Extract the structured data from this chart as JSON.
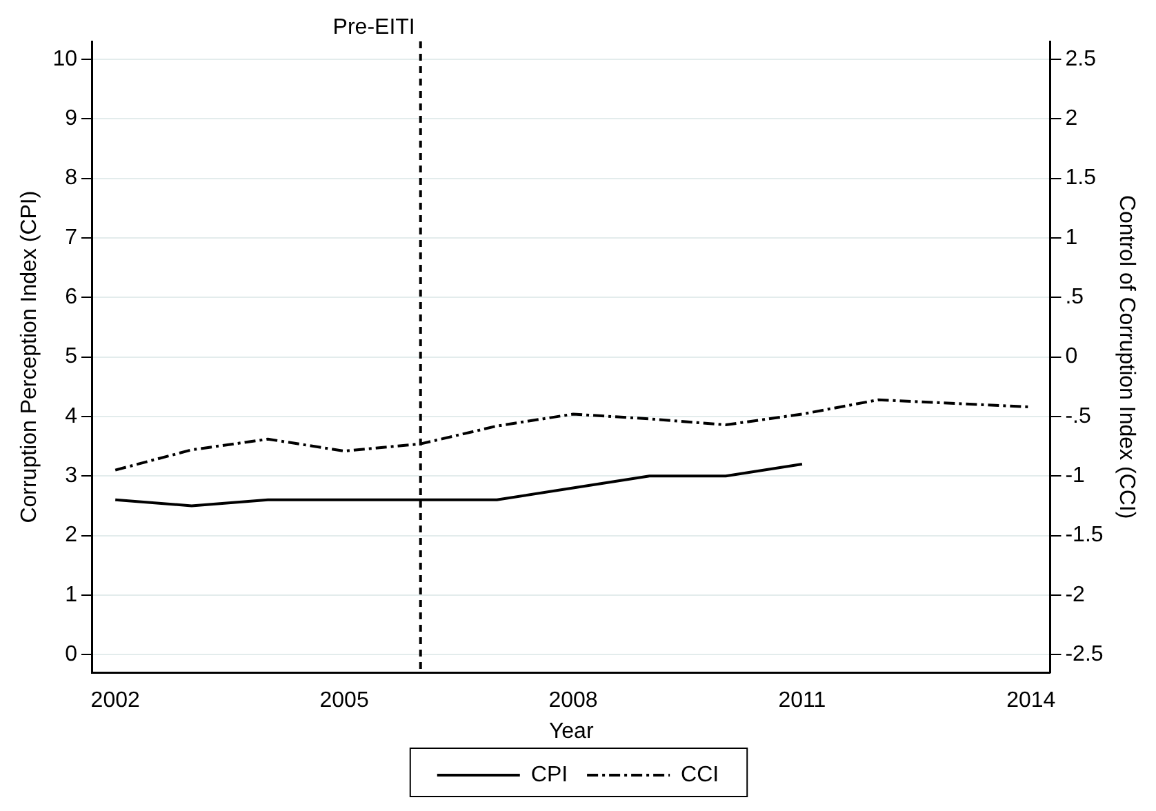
{
  "chart_data": {
    "type": "line",
    "xlabel": "Year",
    "ylabel": "Corruption Perception Index (CPI)",
    "y2label": "Control of Corruption Index (CCI)",
    "xlim": [
      2001.7,
      2014.25
    ],
    "xticks": [
      2002,
      2005,
      2008,
      2011,
      2014
    ],
    "ylim": [
      -0.3,
      10.3
    ],
    "yticks": [
      0,
      1,
      2,
      3,
      4,
      5,
      6,
      7,
      8,
      9,
      10
    ],
    "y2lim": [
      -2.65,
      2.65
    ],
    "y2ticks": [
      -2.5,
      -2,
      -1.5,
      -1,
      {
        "value": -0.5,
        "label": "-.5"
      },
      0,
      {
        "value": 0.5,
        "label": ".5"
      },
      1,
      1.5,
      2,
      2.5
    ],
    "grid": "y",
    "legend": "bottom",
    "marker": "none",
    "series": [
      {
        "name": "CPI",
        "color": "#000000",
        "line_style": "solid",
        "x": [
          2002,
          2003,
          2004,
          2005,
          2006,
          2007,
          2008,
          2009,
          2010,
          2011
        ],
        "values": [
          2.6,
          2.5,
          2.6,
          2.6,
          2.6,
          2.6,
          2.8,
          3.0,
          3.0,
          3.2
        ]
      },
      {
        "name": "CCI",
        "color": "#000000",
        "line_style": "dashed",
        "axis": "y2",
        "x": [
          2002,
          2003,
          2004,
          2005,
          2006,
          2007,
          2008,
          2009,
          2010,
          2011,
          2012,
          2013,
          2014
        ],
        "values": [
          -0.95,
          -0.78,
          -0.69,
          -0.79,
          -0.73,
          -0.58,
          -0.48,
          -0.52,
          -0.57,
          -0.48,
          -0.36,
          -0.39,
          -0.42
        ]
      }
    ],
    "ref_lines": [
      {
        "axis": "x",
        "value": 2006,
        "label": "Pre-EITI",
        "line_style": "dashed"
      }
    ]
  }
}
